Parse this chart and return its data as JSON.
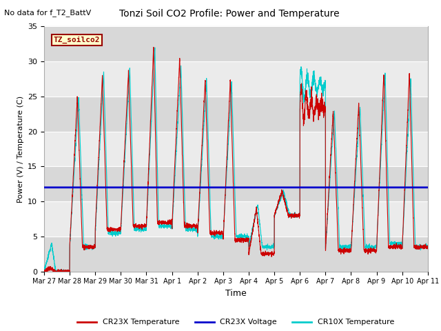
{
  "title": "Tonzi Soil CO2 Profile: Power and Temperature",
  "subtitle": "No data for f_T2_BattV",
  "ylabel": "Power (V) / Temperature (C)",
  "xlabel": "Time",
  "ylim": [
    0,
    35
  ],
  "voltage_value": 12.0,
  "legend_label": "TZ_soilco2",
  "series_labels": [
    "CR23X Temperature",
    "CR23X Voltage",
    "CR10X Temperature"
  ],
  "series_colors": [
    "#cc0000",
    "#0000cc",
    "#00cccc"
  ],
  "plot_bg_light": "#ebebeb",
  "plot_bg_dark": "#d8d8d8",
  "tick_labels": [
    "Mar 27",
    "Mar 28",
    "Mar 29",
    "Mar 30",
    "Mar 31",
    "Apr 1",
    "Apr 2",
    "Apr 3",
    "Apr 4",
    "Apr 5",
    "Apr 6",
    "Apr 7",
    "Apr 8",
    "Apr 9",
    "Apr 10",
    "Apr 11"
  ],
  "yticks": [
    0,
    5,
    10,
    15,
    20,
    25,
    30,
    35
  ]
}
